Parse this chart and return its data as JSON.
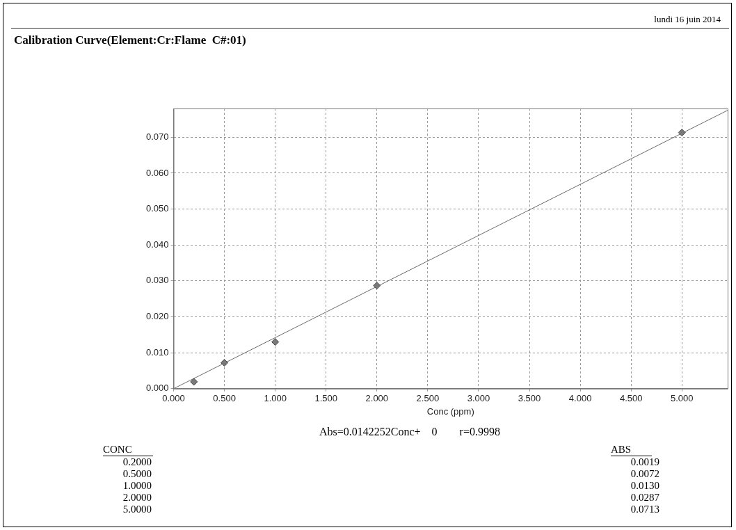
{
  "chart_data": {
    "type": "scatter",
    "title": "Calibration Curve(Element:Cr:Flame  C#:01)",
    "xlabel": "Conc (ppm)",
    "annotations": [
      "lundi 16 juin 2014",
      "Abs=0.0142252Conc+    0        r=0.9998",
      "CONC",
      "ABS",
      "0.2000",
      "0.5000",
      "1.0000",
      "2.0000",
      "5.0000",
      "0.0019",
      "0.0072",
      "0.0130",
      "0.0287",
      "0.0713"
    ],
    "series": [
      {
        "color": "#7a7a7a",
        "marker": "diamond",
        "x": [
          0.2,
          0.5,
          1.0,
          2.0,
          5.0
        ],
        "values": [
          0.0019,
          0.0072,
          0.013,
          0.0287,
          0.0713
        ]
      },
      {
        "type": "line",
        "color": "#6a6a6a",
        "marker": "none",
        "line_style": "solid",
        "x": [
          0,
          5.45
        ],
        "values": [
          0,
          0.0775
        ]
      }
    ],
    "xlim": [
      0,
      5.45
    ],
    "xticks": [
      {
        "value": 0,
        "label": "0.000"
      },
      {
        "value": 0.5,
        "label": "0.500"
      },
      {
        "value": 1,
        "label": "1.000"
      },
      {
        "value": 1.5,
        "label": "1.500"
      },
      {
        "value": 2,
        "label": "2.000"
      },
      {
        "value": 2.5,
        "label": "2.500"
      },
      {
        "value": 3,
        "label": "3.000"
      },
      {
        "value": 3.5,
        "label": "3.500"
      },
      {
        "value": 4,
        "label": "4.000"
      },
      {
        "value": 4.5,
        "label": "4.500"
      },
      {
        "value": 5,
        "label": "5.000"
      }
    ],
    "ylim": [
      0,
      0.078
    ],
    "yticks": [
      {
        "value": 0,
        "label": "0.000"
      },
      {
        "value": 0.01,
        "label": "0.010"
      },
      {
        "value": 0.02,
        "label": "0.020"
      },
      {
        "value": 0.03,
        "label": "0.030"
      },
      {
        "value": 0.04,
        "label": "0.040"
      },
      {
        "value": 0.05,
        "label": "0.050"
      },
      {
        "value": 0.06,
        "label": "0.060"
      },
      {
        "value": 0.07,
        "label": "0.070"
      }
    ],
    "grid": true,
    "legend": false
  }
}
